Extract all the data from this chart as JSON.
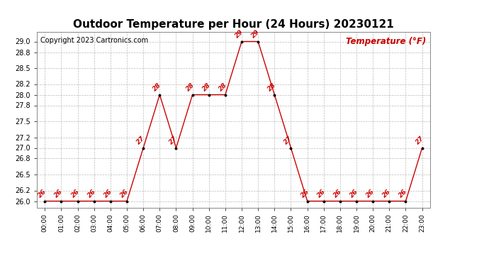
{
  "title": "Outdoor Temperature per Hour (24 Hours) 20230121",
  "copyright_text": "Copyright 2023 Cartronics.com",
  "legend_label": "Temperature (°F)",
  "hours": [
    "00:00",
    "01:00",
    "02:00",
    "03:00",
    "04:00",
    "05:00",
    "06:00",
    "07:00",
    "08:00",
    "09:00",
    "10:00",
    "11:00",
    "12:00",
    "13:00",
    "14:00",
    "15:00",
    "16:00",
    "17:00",
    "18:00",
    "19:00",
    "20:00",
    "21:00",
    "22:00",
    "23:00"
  ],
  "temperatures": [
    26,
    26,
    26,
    26,
    26,
    26,
    27,
    28,
    27,
    28,
    28,
    28,
    29,
    29,
    28,
    27,
    26,
    26,
    26,
    26,
    26,
    26,
    26,
    27
  ],
  "line_color": "#cc0000",
  "marker_color": "#000000",
  "label_color": "#cc0000",
  "grid_color": "#bbbbbb",
  "background_color": "#ffffff",
  "ylim_min": 25.88,
  "ylim_max": 29.18,
  "ytick_values": [
    26.0,
    26.2,
    26.5,
    26.8,
    27.0,
    27.2,
    27.5,
    27.8,
    28.0,
    28.2,
    28.5,
    28.8,
    29.0
  ],
  "title_fontsize": 11,
  "copyright_fontsize": 7,
  "legend_fontsize": 8.5,
  "label_fontsize": 6.5,
  "tick_fontsize": 7,
  "xtick_fontsize": 6.5
}
